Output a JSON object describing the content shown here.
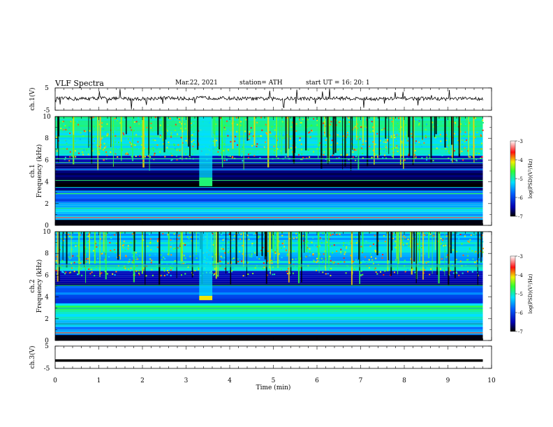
{
  "header": {
    "title": "VLF  Spectra",
    "date": "Mar.22, 2021",
    "station": "station= ATH",
    "start": "start  UT  =    16: 20: 1"
  },
  "chart_data": [
    {
      "type": "line",
      "panel": "ch1-waveform",
      "ylabel": "ch.1(V)",
      "yticks": [
        "5",
        "-5"
      ],
      "ylim": [
        -5,
        5
      ],
      "x": [
        0,
        0.5,
        1,
        1.5,
        2,
        2.5,
        3,
        3.5,
        4,
        4.5,
        5,
        5.5,
        6,
        6.5,
        7,
        7.5,
        8,
        8.5,
        9,
        9.5,
        9.8
      ],
      "values": [
        0.3,
        0.1,
        0.4,
        0.2,
        0.1,
        0.5,
        0.2,
        0.6,
        0.3,
        0.2,
        0.1,
        0.3,
        0.2,
        0.4,
        0.2,
        0.1,
        0.3,
        0.2,
        0.1,
        0.2,
        0.2
      ],
      "color": "#000000"
    },
    {
      "type": "heatmap",
      "panel": "ch1-spectrogram",
      "ylabel_top": "ch.1",
      "ylabel": "Frequency  (kHz)",
      "yticks": [
        "0",
        "2",
        "4",
        "6",
        "8",
        "10"
      ],
      "ylim": [
        0,
        10
      ],
      "colorbar": {
        "label": "log(PSD)(V²/Hz)",
        "ticks": [
          "-3",
          "-4",
          "-5",
          "-6",
          "-7"
        ],
        "range": [
          -7,
          -3
        ]
      },
      "bands_khz": [
        {
          "from": 0,
          "to": 2,
          "level": -5.3
        },
        {
          "from": 2,
          "to": 3.2,
          "level": -5.8
        },
        {
          "from": 3.2,
          "to": 5,
          "level": -6.9
        },
        {
          "from": 5,
          "to": 6.4,
          "level": -6.5
        },
        {
          "from": 6.4,
          "to": 10,
          "level": -5.0
        }
      ],
      "burst": {
        "t_from": 3.3,
        "t_to": 3.6,
        "f_from": 3.6,
        "f_to": 4.4,
        "level": -4.8
      }
    },
    {
      "type": "heatmap",
      "panel": "ch2-spectrogram",
      "ylabel_top": "ch.2",
      "ylabel": "Frequency  (kHz)",
      "yticks": [
        "0",
        "2",
        "4",
        "6",
        "8",
        "10"
      ],
      "ylim": [
        0,
        10
      ],
      "colorbar": {
        "label": "log(PSD)(V²/Hz)",
        "ticks": [
          "-3",
          "-4",
          "-5",
          "-6",
          "-7"
        ],
        "range": [
          -7,
          -3
        ]
      },
      "bands_khz": [
        {
          "from": 0,
          "to": 2,
          "level": -5.6
        },
        {
          "from": 2,
          "to": 3.4,
          "level": -5.0
        },
        {
          "from": 3.4,
          "to": 5,
          "level": -5.9
        },
        {
          "from": 5,
          "to": 6.4,
          "level": -6.6
        },
        {
          "from": 6.4,
          "to": 10,
          "level": -5.3
        }
      ],
      "burst": {
        "t_from": 3.3,
        "t_to": 3.6,
        "f_from": 3.7,
        "f_to": 4.1,
        "level": -4.1
      }
    },
    {
      "type": "line",
      "panel": "ch3-waveform",
      "ylabel": "ch.3(V)",
      "yticks": [
        "5",
        "-5"
      ],
      "ylim": [
        -5,
        5
      ],
      "x": [
        0,
        9.8
      ],
      "values": [
        -1.5,
        -1.5
      ],
      "color": "#000000"
    }
  ],
  "xaxis": {
    "label": "Time  (min)",
    "ticks": [
      "0",
      "1",
      "2",
      "3",
      "4",
      "5",
      "6",
      "7",
      "8",
      "9",
      "10"
    ],
    "xlim": [
      0,
      10
    ],
    "data_end": 9.8
  }
}
